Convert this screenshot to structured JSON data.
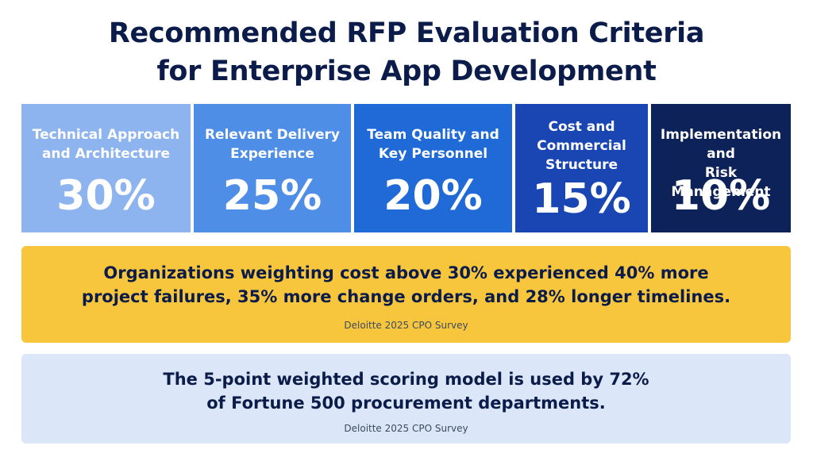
{
  "title": {
    "line1": "Recommended RFP Evaluation Criteria",
    "line2": "for Enterprise App Development"
  },
  "criteria": [
    {
      "label_lines": [
        "Technical Approach",
        "and Architecture"
      ],
      "weight": "30%",
      "color": "#8db4ef"
    },
    {
      "label_lines": [
        "Relevant Delivery",
        "Experience"
      ],
      "weight": "25%",
      "color": "#4f8ee6"
    },
    {
      "label_lines": [
        "Team Quality and",
        "Key Personnel"
      ],
      "weight": "20%",
      "color": "#1f6ad6"
    },
    {
      "label_lines": [
        "Cost and",
        "Commercial",
        "Structure"
      ],
      "weight": "15%",
      "color": "#1a46b3"
    },
    {
      "label_lines": [
        "Implementation and",
        "Risk Management"
      ],
      "weight": "10%",
      "color": "#0d2258"
    }
  ],
  "callouts": [
    {
      "lines": [
        "Organizations weighting cost above 30% experienced 40% more",
        "project failures, 35% more change orders, and 28% longer timelines."
      ],
      "source": "Deloitte 2025 CPO Survey",
      "color": "#f8c63d"
    },
    {
      "lines": [
        "The 5-point weighted scoring model is used by 72%",
        "of Fortune 500 procurement departments."
      ],
      "source": "Deloitte 2025 CPO Survey",
      "color": "#dbe6f8"
    }
  ]
}
